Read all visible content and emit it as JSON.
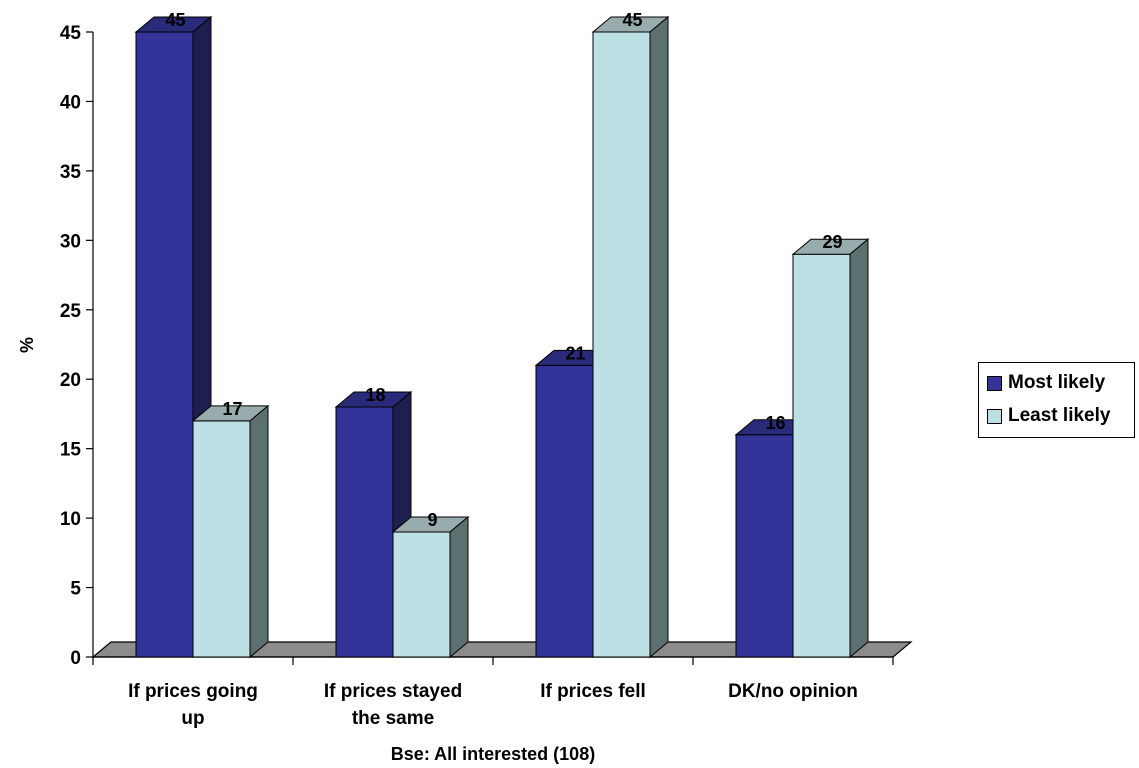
{
  "chart_data": {
    "type": "bar",
    "title": "",
    "ylabel": "%",
    "xlabel": "Bse: All interested (108)",
    "ylim": [
      0,
      45
    ],
    "yticks": [
      0,
      5,
      10,
      15,
      20,
      25,
      30,
      35,
      40,
      45
    ],
    "categories": [
      [
        "If prices going",
        "up"
      ],
      [
        "If prices stayed",
        "the same"
      ],
      [
        "If prices fell"
      ],
      [
        "DK/no opinion"
      ]
    ],
    "series": [
      {
        "name": "Most likely",
        "values": [
          45,
          18,
          21,
          16
        ],
        "color": "#333399",
        "side_color": "#1f1f4f",
        "top_color": "#2a2a7a"
      },
      {
        "name": "Least likely",
        "values": [
          17,
          9,
          45,
          29
        ],
        "color": "#bce0e3",
        "side_color": "#5c7070",
        "top_color": "#98acae"
      }
    ],
    "legend_position": "right",
    "grid": false,
    "three_d": true
  }
}
